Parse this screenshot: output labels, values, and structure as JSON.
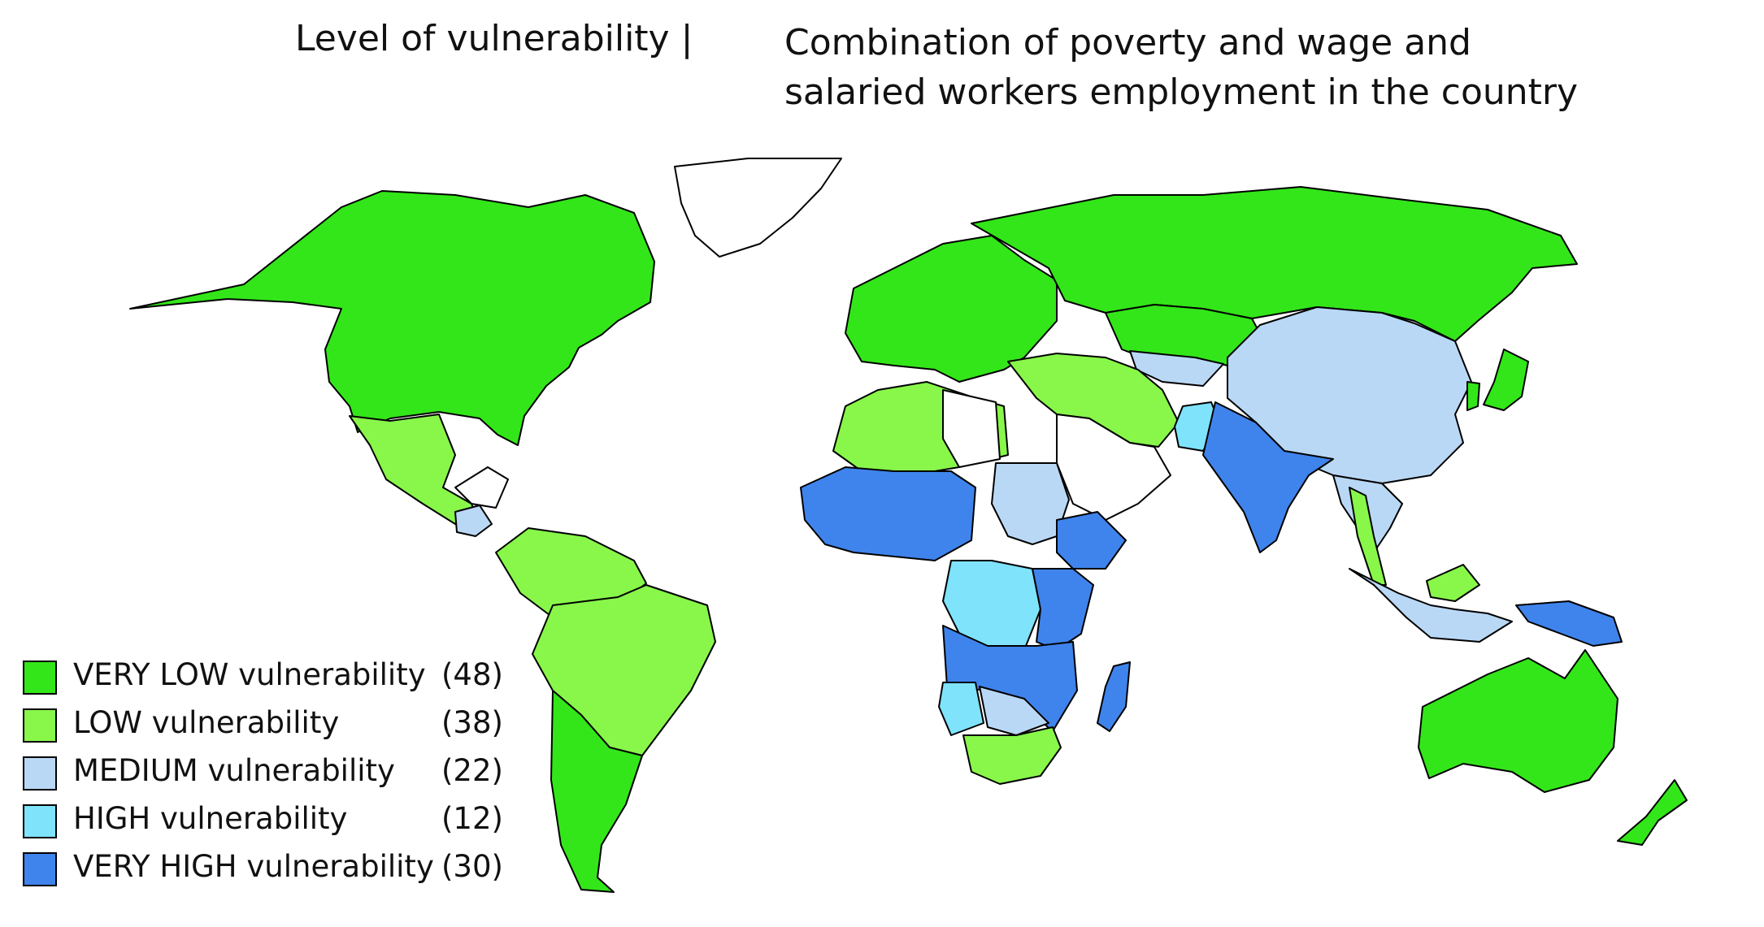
{
  "title_left": "Level of vulnerability  |",
  "title_right_line1": "Combination of poverty and wage and",
  "title_right_line2": "salaried workers employment in the country",
  "colors": {
    "very_low": "#33e619",
    "low": "#88f74a",
    "medium": "#b9d8f5",
    "high": "#7fe3fb",
    "very_high": "#3f84ec",
    "no_data": "#ffffff",
    "border": "#000000"
  },
  "legend": [
    {
      "label": "VERY LOW vulnerability",
      "count": "(48)",
      "color": "#33e619"
    },
    {
      "label": "LOW vulnerability",
      "count": "(38)",
      "color": "#88f74a"
    },
    {
      "label": "MEDIUM vulnerability",
      "count": "(22)",
      "color": "#b9d8f5"
    },
    {
      "label": "HIGH vulnerability",
      "count": "(12)",
      "color": "#7fe3fb"
    },
    {
      "label": "VERY HIGH vulnerability",
      "count": "(30)",
      "color": "#3f84ec"
    }
  ],
  "regions": {
    "north_america": "very_low",
    "greenland": "no_data",
    "mexico": "low",
    "central_america": "no_data",
    "guatemala_honduras": "medium",
    "south_america_north": "low",
    "brazil": "low",
    "argentina_chile": "very_low",
    "europe": "very_low",
    "russia": "very_low",
    "kazakhstan": "very_low",
    "central_asia": "medium",
    "china": "medium",
    "japan": "very_low",
    "korea": "very_low",
    "turkey_iran": "low",
    "middle_east": "no_data",
    "pakistan": "high",
    "india": "very_high",
    "southeast_asia": "medium",
    "thailand": "low",
    "malaysia": "low",
    "indonesia": "medium",
    "papua_new_guinea": "very_high",
    "australia": "very_low",
    "new_zealand": "very_low",
    "north_africa": "low",
    "libya": "no_data",
    "west_africa": "very_high",
    "sudan": "medium",
    "ethiopia": "very_high",
    "central_africa": "high",
    "east_africa": "very_high",
    "southern_africa": "very_high",
    "angola": "high",
    "botswana": "medium",
    "south_africa": "low",
    "madagascar": "very_high"
  }
}
